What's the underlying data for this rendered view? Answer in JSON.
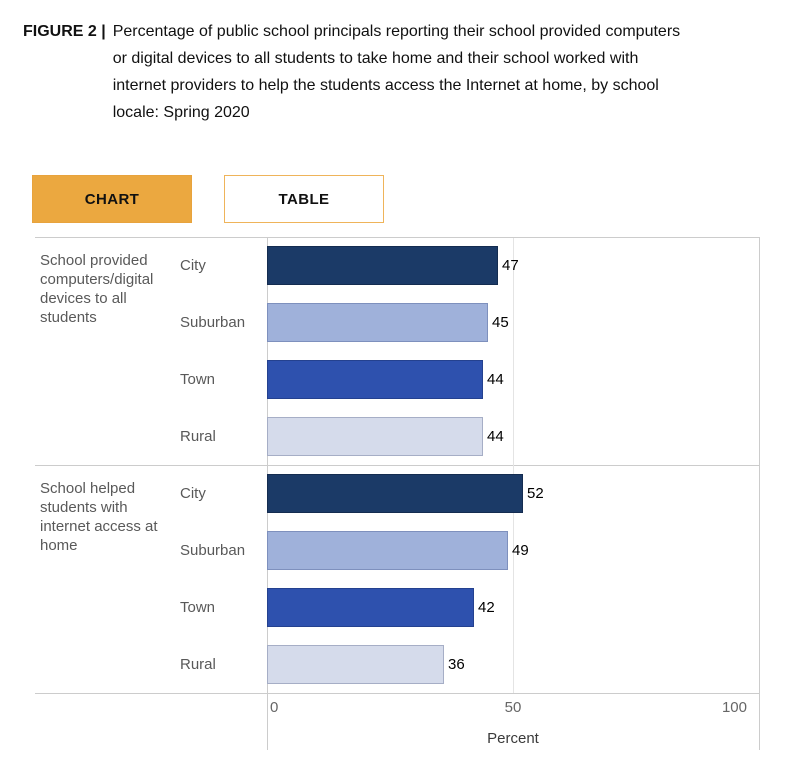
{
  "figure": {
    "label": "FIGURE 2 |",
    "title_lines": [
      "Percentage of public school principals reporting their school provided computers",
      "or digital devices to all students to take home and their school worked with",
      "internet providers to help the students access the Internet at home, by school",
      "locale: Spring 2020"
    ]
  },
  "tabs": [
    {
      "label": "CHART",
      "active": true
    },
    {
      "label": "TABLE",
      "active": false
    }
  ],
  "chart_data": {
    "type": "bar",
    "orientation": "horizontal",
    "xlabel": "Percent",
    "xlim": [
      0,
      100
    ],
    "xticks": [
      0,
      50,
      100
    ],
    "grid": "on",
    "groups": [
      {
        "label": "School provided computers/digital devices to all students",
        "categories": [
          "City",
          "Suburban",
          "Town",
          "Rural"
        ],
        "values": [
          47,
          45,
          44,
          44
        ]
      },
      {
        "label": "School helped students with internet access at home",
        "categories": [
          "City",
          "Suburban",
          "Town",
          "Rural"
        ],
        "values": [
          52,
          49,
          42,
          36
        ]
      }
    ],
    "series_colors": [
      {
        "name": "City",
        "fill": "#1b3a67",
        "border": "#142c50"
      },
      {
        "name": "Suburban",
        "fill": "#9fb1da",
        "border": "#7e90bd"
      },
      {
        "name": "Town",
        "fill": "#2e51ae",
        "border": "#24418f"
      },
      {
        "name": "Rural",
        "fill": "#d5dbeb",
        "border": "#a6aec6"
      }
    ]
  },
  "colors": {
    "tab_active_bg": "#eba840",
    "tab_inactive_border": "#efb45a",
    "axis_line": "#cccccc",
    "gridline": "#e4e4e4",
    "label_gray": "#595959",
    "tick_gray": "#666666",
    "value_text": "#000000"
  }
}
